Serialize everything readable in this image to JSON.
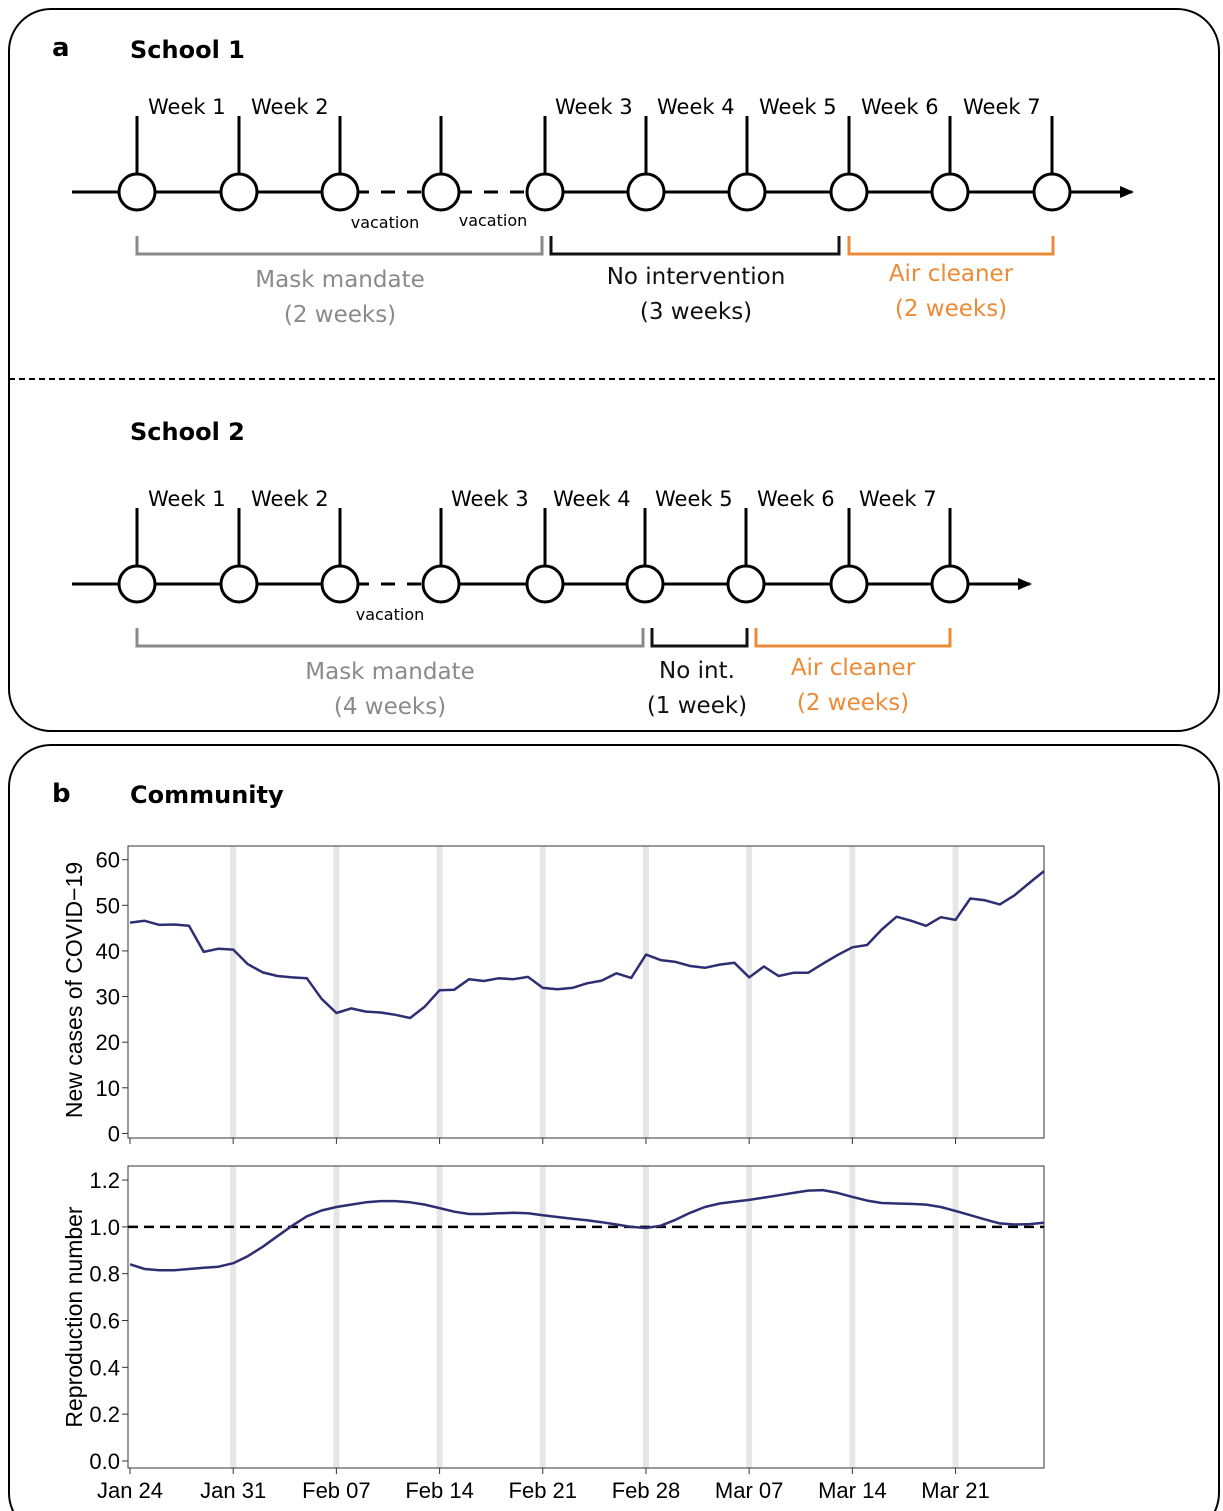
{
  "panel_a": {
    "letter": "a",
    "school1": {
      "title": "School 1",
      "weeks": [
        "Week 1",
        "Week 2",
        "Week 3",
        "Week 4",
        "Week 5",
        "Week 6",
        "Week 7"
      ],
      "vacation_labels": [
        "vacation",
        "vacation"
      ],
      "periods": [
        {
          "line1": "Mask mandate",
          "line2": "(2 weeks)",
          "color": "#8a8a8a"
        },
        {
          "line1": "No intervention",
          "line2": "(3 weeks)",
          "color": "#111111"
        },
        {
          "line1": "Air cleaner",
          "line2": "(2 weeks)",
          "color": "#ec8a35"
        }
      ]
    },
    "school2": {
      "title": "School 2",
      "weeks": [
        "Week 1",
        "Week 2",
        "Week 3",
        "Week 4",
        "Week 5",
        "Week 6",
        "Week 7"
      ],
      "vacation_labels": [
        "vacation"
      ],
      "periods": [
        {
          "line1": "Mask mandate",
          "line2": "(4 weeks)",
          "color": "#8a8a8a"
        },
        {
          "line1": "No int.",
          "line2": "(1 week)",
          "color": "#111111"
        },
        {
          "line1": "Air cleaner",
          "line2": "(2 weeks)",
          "color": "#ec8a35"
        }
      ]
    }
  },
  "panel_b": {
    "letter": "b",
    "title": "Community"
  },
  "chart_data": [
    {
      "type": "line",
      "ylabel": "New cases of COVID−19",
      "ylim": [
        -1,
        63
      ],
      "yticks": [
        0,
        10,
        20,
        30,
        40,
        50,
        60
      ],
      "x_dates": [
        "2021-01-24",
        "2021-01-25",
        "2021-01-26",
        "2021-01-27",
        "2021-01-28",
        "2021-01-29",
        "2021-01-30",
        "2021-01-31",
        "2021-02-01",
        "2021-02-02",
        "2021-02-03",
        "2021-02-04",
        "2021-02-05",
        "2021-02-06",
        "2021-02-07",
        "2021-02-08",
        "2021-02-09",
        "2021-02-10",
        "2021-02-11",
        "2021-02-12",
        "2021-02-13",
        "2021-02-14",
        "2021-02-15",
        "2021-02-16",
        "2021-02-17",
        "2021-02-18",
        "2021-02-19",
        "2021-02-20",
        "2021-02-21",
        "2021-02-22",
        "2021-02-23",
        "2021-02-24",
        "2021-02-25",
        "2021-02-26",
        "2021-02-27",
        "2021-02-28",
        "2021-03-01",
        "2021-03-02",
        "2021-03-03",
        "2021-03-04",
        "2021-03-05",
        "2021-03-06",
        "2021-03-07",
        "2021-03-08",
        "2021-03-09",
        "2021-03-10",
        "2021-03-11",
        "2021-03-12",
        "2021-03-13",
        "2021-03-14",
        "2021-03-15",
        "2021-03-16",
        "2021-03-17",
        "2021-03-18",
        "2021-03-19",
        "2021-03-20",
        "2021-03-21",
        "2021-03-22",
        "2021-03-23",
        "2021-03-24",
        "2021-03-25",
        "2021-03-26",
        "2021-03-27"
      ],
      "values": [
        46.2,
        46.6,
        45.7,
        45.8,
        45.5,
        39.8,
        40.5,
        40.3,
        37.1,
        35.3,
        34.5,
        34.2,
        34.0,
        29.5,
        26.4,
        27.4,
        26.7,
        26.5,
        26.0,
        25.3,
        27.8,
        31.4,
        31.5,
        33.8,
        33.4,
        34.0,
        33.8,
        34.3,
        31.9,
        31.6,
        31.9,
        32.9,
        33.5,
        35.1,
        34.1,
        39.2,
        38.0,
        37.6,
        36.7,
        36.3,
        37.0,
        37.4,
        34.2,
        36.6,
        34.5,
        35.2,
        35.2,
        37.2,
        39.1,
        40.8,
        41.3,
        44.7,
        47.5,
        46.6,
        45.5,
        47.4,
        46.8,
        51.5,
        51.1,
        50.2,
        52.2,
        54.9,
        57.5
      ],
      "xtick_labels": [
        "Jan 24",
        "Jan 31",
        "Feb 07",
        "Feb 14",
        "Feb 21",
        "Feb 28",
        "Mar 07",
        "Mar 14",
        "Mar 21"
      ],
      "xtick_index": [
        0,
        7,
        14,
        21,
        28,
        35,
        42,
        49,
        56
      ],
      "vertical_bands_index": [
        7,
        14,
        21,
        28,
        35,
        42,
        49,
        56
      ],
      "line_color": "#2e2f73",
      "grid": false
    },
    {
      "type": "line",
      "ylabel": "Reproduction number",
      "ylim": [
        -0.03,
        1.26
      ],
      "yticks": [
        0.0,
        0.2,
        0.4,
        0.6,
        0.8,
        1.0,
        1.2
      ],
      "ytick_labels": [
        "0.0",
        "0.2",
        "0.4",
        "0.6",
        "0.8",
        "1.0",
        "1.2"
      ],
      "values": [
        0.84,
        0.82,
        0.815,
        0.815,
        0.82,
        0.825,
        0.83,
        0.845,
        0.875,
        0.915,
        0.96,
        1.005,
        1.045,
        1.07,
        1.085,
        1.095,
        1.105,
        1.11,
        1.11,
        1.105,
        1.095,
        1.08,
        1.065,
        1.055,
        1.055,
        1.058,
        1.06,
        1.058,
        1.05,
        1.042,
        1.035,
        1.028,
        1.02,
        1.01,
        1.0,
        0.995,
        1.005,
        1.03,
        1.06,
        1.085,
        1.1,
        1.108,
        1.115,
        1.125,
        1.135,
        1.145,
        1.155,
        1.157,
        1.145,
        1.128,
        1.112,
        1.102,
        1.1,
        1.098,
        1.095,
        1.085,
        1.068,
        1.05,
        1.032,
        1.015,
        1.01,
        1.012,
        1.018
      ],
      "reference_line": 1.0,
      "xtick_labels": [
        "Jan 24",
        "Jan 31",
        "Feb 07",
        "Feb 14",
        "Feb 21",
        "Feb 28",
        "Mar 07",
        "Mar 14",
        "Mar 21"
      ],
      "xtick_index": [
        0,
        7,
        14,
        21,
        28,
        35,
        42,
        49,
        56
      ],
      "vertical_bands_index": [
        7,
        14,
        21,
        28,
        35,
        42,
        49,
        56
      ],
      "line_color": "#2e2f73",
      "grid": false
    }
  ]
}
